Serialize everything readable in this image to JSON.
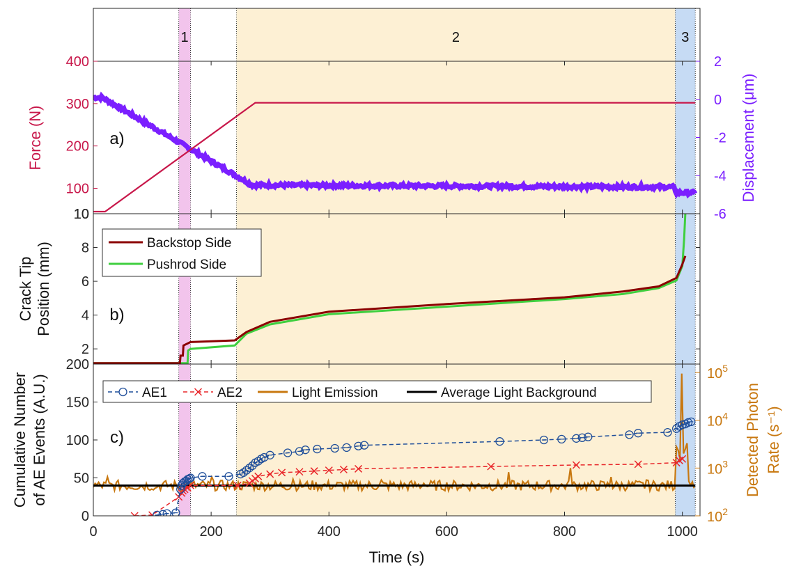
{
  "colors": {
    "force": "#c8174a",
    "displacement": "#7b1fff",
    "backstop": "#8b0000",
    "pushrod": "#3fcf3f",
    "ae1": "#1f4e9a",
    "ae2": "#e8262a",
    "light": "#c87810",
    "background": "#000000",
    "stage1": "#f2c4ec",
    "stage2": "#fdf0d4",
    "stage3": "#c6dbf4"
  },
  "chart_data": {
    "type": "line",
    "xlabel": "Time (s)",
    "xlim": [
      0,
      1030
    ],
    "xticks": [
      0,
      200,
      400,
      600,
      800,
      1000
    ],
    "stages": [
      {
        "label": "1",
        "x0": 145,
        "x1": 165
      },
      {
        "label": "2",
        "x0": 243,
        "x1": 988
      },
      {
        "label": "3",
        "x0": 988,
        "x1": 1022
      }
    ],
    "panels": [
      {
        "id": "a",
        "panel_label": "a)",
        "ylabel_left": "Force (N)",
        "ylabel_right": "Displacement (μm)",
        "left_yticks": [
          100,
          200,
          300,
          400
        ],
        "left_ylim": [
          40,
          400
        ],
        "right_yticks": [
          -6,
          -4,
          -2,
          0,
          2
        ],
        "right_ylim": [
          -6,
          2
        ],
        "series": [
          {
            "name": "Force",
            "axis": "left",
            "x": [
              0,
              20,
              275,
              1022
            ],
            "y": [
              45,
              45,
              302,
              302
            ]
          },
          {
            "name": "Displacement",
            "axis": "right",
            "x": [
              0,
              15,
              270,
              985,
              990,
              1022
            ],
            "y": [
              0.1,
              0.1,
              -4.5,
              -4.6,
              -4.9,
              -4.9
            ]
          }
        ]
      },
      {
        "id": "b",
        "panel_label": "b)",
        "ylabel": [
          "Crack Tip",
          "Position (mm)"
        ],
        "yticks": [
          2,
          4,
          6,
          8,
          10
        ],
        "ylim": [
          1.1,
          10
        ],
        "series": [
          {
            "name": "Backstop Side",
            "x": [
              0,
              147,
              148,
              152,
              153,
              165,
              240,
              260,
              300,
              400,
              600,
              800,
              900,
              960,
              990,
              1000,
              1005
            ],
            "y": [
              1.15,
              1.15,
              1.6,
              1.6,
              2.2,
              2.4,
              2.5,
              3.0,
              3.6,
              4.2,
              4.65,
              5.05,
              5.4,
              5.7,
              6.2,
              7.0,
              7.5
            ]
          },
          {
            "name": "Pushrod Side",
            "x": [
              0,
              160,
              161,
              165,
              240,
              260,
              300,
              400,
              600,
              800,
              900,
              960,
              990,
              1000,
              1003,
              1005
            ],
            "y": [
              1.15,
              1.15,
              1.9,
              2.0,
              2.2,
              2.9,
              3.45,
              4.05,
              4.5,
              4.95,
              5.25,
              5.6,
              6.05,
              6.9,
              8.5,
              10.0
            ]
          }
        ]
      },
      {
        "id": "c",
        "panel_label": "c)",
        "ylabel_left": [
          "Cumulative Number",
          "of AE Events (A.U.)"
        ],
        "ylabel_right": [
          "Detected Photon",
          "Rate (s⁻¹)"
        ],
        "left_yticks": [
          0,
          50,
          100,
          150,
          200
        ],
        "left_ylim": [
          0,
          200
        ],
        "right_yticks": [
          100,
          1000,
          10000,
          100000
        ],
        "right_tick_labels": [
          [
            "10",
            "2"
          ],
          [
            "10",
            "3"
          ],
          [
            "10",
            "4"
          ],
          [
            "10",
            "5"
          ]
        ],
        "right_ylim": [
          100,
          150000
        ],
        "right_scale": "log",
        "series": [
          {
            "name": "AE1",
            "axis": "left",
            "x": [
              108,
              118,
              125,
              140,
              148,
              150,
              152,
              155,
              158,
              160,
              163,
              165,
              185,
              230,
              250,
              255,
              260,
              265,
              270,
              275,
              280,
              285,
              290,
              300,
              330,
              350,
              360,
              380,
              410,
              430,
              450,
              460,
              690,
              765,
              795,
              820,
              830,
              840,
              910,
              925,
              975,
              990,
              995,
              1000,
              1005,
              1010,
              1015
            ],
            "y": [
              1,
              2,
              3,
              4,
              35,
              40,
              43,
              45,
              46,
              48,
              49,
              50,
              52,
              52,
              55,
              57,
              60,
              63,
              66,
              70,
              72,
              75,
              77,
              80,
              83,
              85,
              87,
              88,
              89,
              90,
              92,
              93,
              98,
              100,
              101,
              102,
              103,
              104,
              107,
              109,
              110,
              115,
              118,
              120,
              121,
              123,
              124
            ]
          },
          {
            "name": "AE2",
            "axis": "left",
            "x": [
              70,
              100,
              145,
              150,
              152,
              155,
              160,
              165,
              245,
              265,
              270,
              275,
              280,
              300,
              320,
              350,
              375,
              400,
              425,
              450,
              675,
              820,
              925,
              990,
              995,
              1000
            ],
            "y": [
              0,
              1,
              25,
              30,
              33,
              35,
              37,
              40,
              40,
              43,
              46,
              49,
              52,
              55,
              57,
              58,
              59,
              60,
              61,
              62,
              65,
              67,
              68,
              70,
              73,
              75
            ]
          },
          {
            "name": "Light Emission",
            "axis": "right",
            "base": 430,
            "spikes": [
              [
                25,
                650
              ],
              [
                105,
                380
              ],
              [
                150,
                300
              ],
              [
                200,
                650
              ],
              [
                340,
                580
              ],
              [
                490,
                560
              ],
              [
                560,
                480
              ],
              [
                705,
                820
              ],
              [
                810,
                1000
              ],
              [
                880,
                650
              ],
              [
                940,
                560
              ],
              [
                1000,
                95000
              ],
              [
                1005,
                2500
              ]
            ]
          },
          {
            "name": "Average Light Background",
            "axis": "right",
            "x": [
              0,
              1022
            ],
            "y": [
              430,
              430
            ]
          }
        ]
      }
    ]
  }
}
